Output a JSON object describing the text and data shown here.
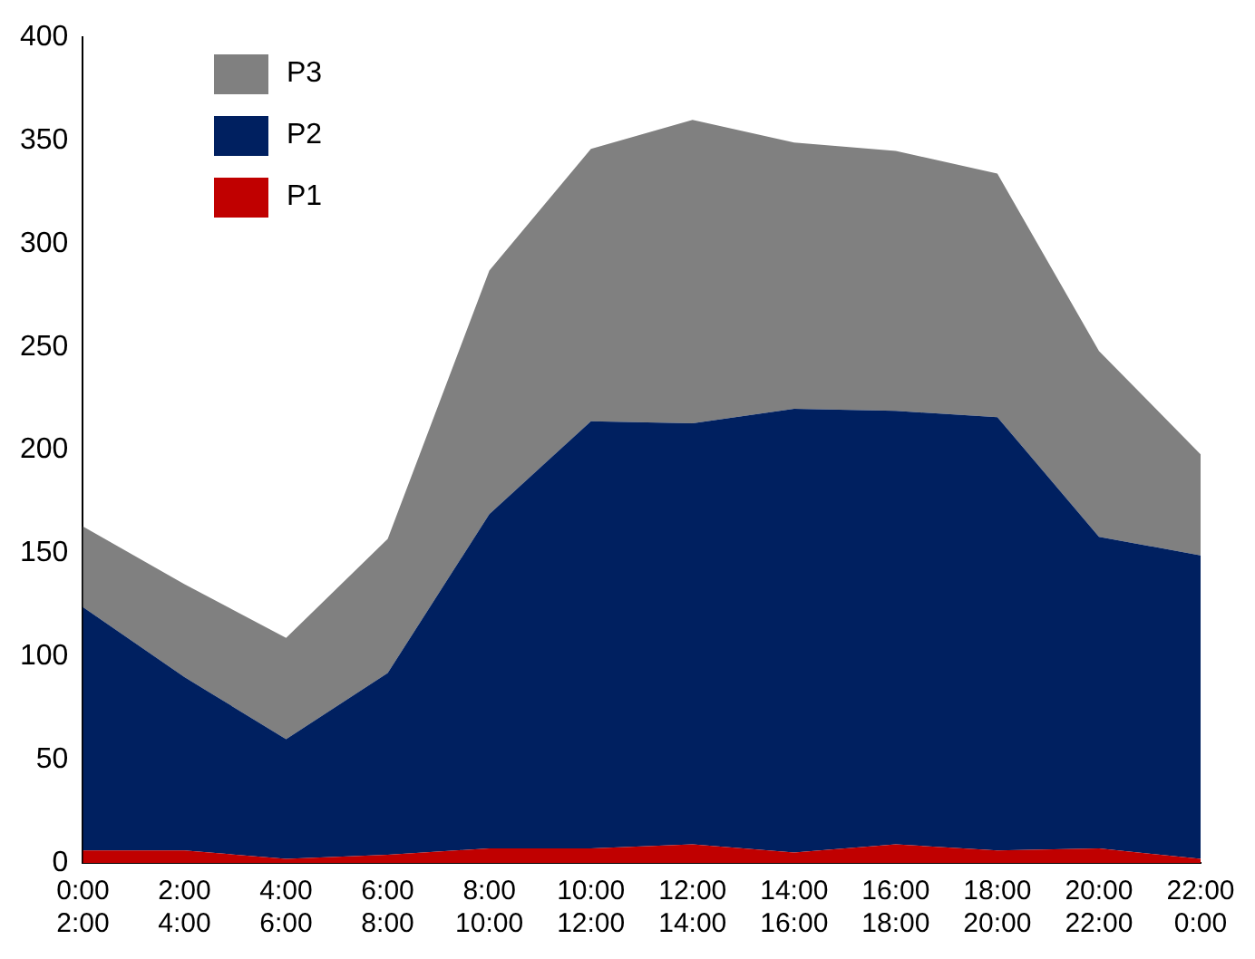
{
  "chart_data": {
    "type": "area",
    "stacked": true,
    "categories": [
      "0:00\n2:00",
      "2:00\n4:00",
      "4:00\n6:00",
      "6:00\n8:00",
      "8:00\n10:00",
      "10:00\n12:00",
      "12:00\n14:00",
      "14:00\n16:00",
      "16:00\n18:00",
      "18:00\n20:00",
      "20:00\n22:00",
      "22:00\n0:00"
    ],
    "series": [
      {
        "name": "P1",
        "color": "#c00000",
        "values": [
          6,
          6,
          2,
          4,
          7,
          7,
          9,
          5,
          9,
          6,
          7,
          2
        ]
      },
      {
        "name": "P2",
        "color": "#002060",
        "values": [
          118,
          84,
          58,
          88,
          162,
          207,
          204,
          215,
          210,
          210,
          151,
          147
        ]
      },
      {
        "name": "P3",
        "color": "#808080",
        "values": [
          39,
          45,
          49,
          65,
          118,
          132,
          147,
          129,
          126,
          118,
          90,
          49
        ]
      }
    ],
    "ylim": [
      0,
      400
    ],
    "yticks": [
      0,
      50,
      100,
      150,
      200,
      250,
      300,
      350,
      400
    ],
    "grid": false,
    "legend": "top left"
  }
}
